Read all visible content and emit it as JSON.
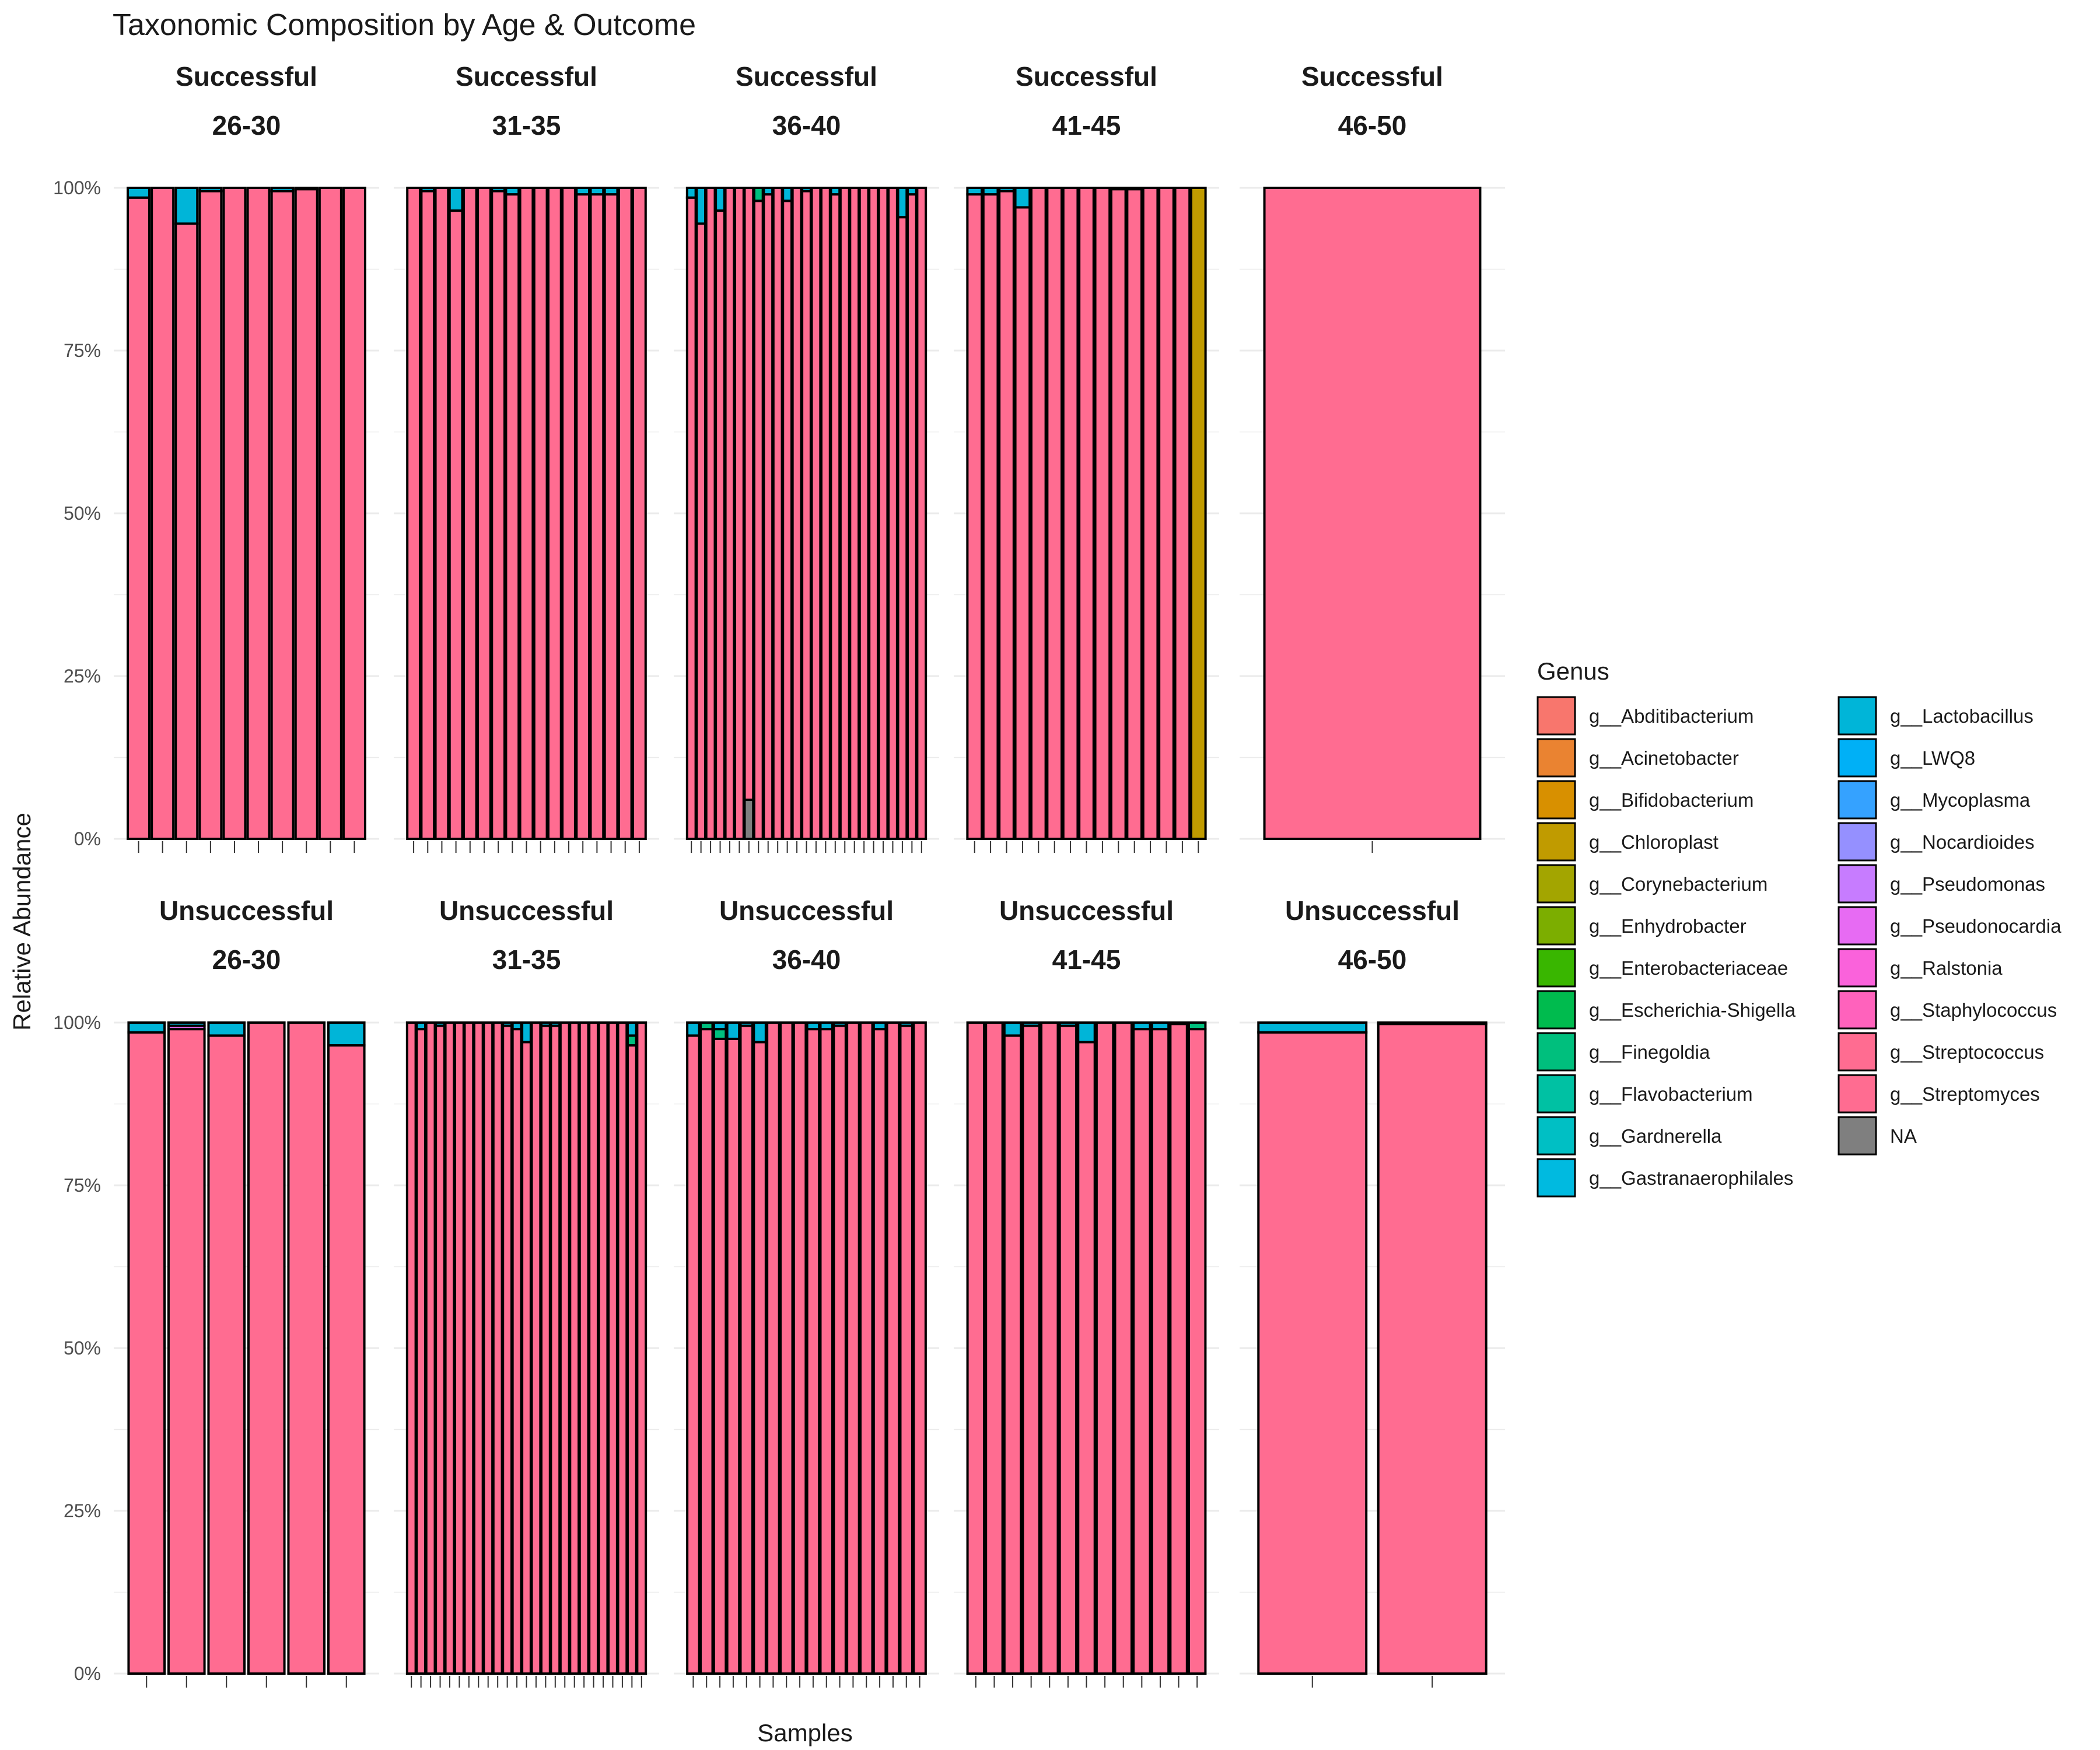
{
  "chart_data": {
    "type": "bar",
    "stacked": true,
    "title": "Taxonomic Composition by Age & Outcome",
    "xlabel": "Samples",
    "ylabel": "Relative Abundance",
    "ylim": [
      0,
      1
    ],
    "y_ticks": [
      "0%",
      "25%",
      "50%",
      "75%",
      "100%"
    ],
    "y_tick_values": [
      0,
      0.25,
      0.5,
      0.75,
      1.0
    ],
    "grid": true,
    "legend_position": "right",
    "legend": {
      "title": "Genus",
      "entries": [
        {
          "name": "g__Abditibacterium",
          "color": "#F8766D"
        },
        {
          "name": "g__Acinetobacter",
          "color": "#EA8331"
        },
        {
          "name": "g__Bifidobacterium",
          "color": "#D89000"
        },
        {
          "name": "g__Chloroplast",
          "color": "#C09B00"
        },
        {
          "name": "g__Corynebacterium",
          "color": "#A3A500"
        },
        {
          "name": "g__Enhydrobacter",
          "color": "#7CAE00"
        },
        {
          "name": "g__Enterobacteriaceae",
          "color": "#39B600"
        },
        {
          "name": "g__Escherichia-Shigella",
          "color": "#00BB4E"
        },
        {
          "name": "g__Finegoldia",
          "color": "#00BF7D"
        },
        {
          "name": "g__Flavobacterium",
          "color": "#00C1A3"
        },
        {
          "name": "g__Gardnerella",
          "color": "#00BFC4"
        },
        {
          "name": "g__Gastranaerophilales",
          "color": "#00BAE0"
        },
        {
          "name": "g__Lactobacillus",
          "color": "#00B5D8"
        },
        {
          "name": "g__LWQ8",
          "color": "#00B0F6"
        },
        {
          "name": "g__Mycoplasma",
          "color": "#35A2FF"
        },
        {
          "name": "g__Nocardioides",
          "color": "#9590FF"
        },
        {
          "name": "g__Pseudomonas",
          "color": "#C77CFF"
        },
        {
          "name": "g__Pseudonocardia",
          "color": "#E76BF3"
        },
        {
          "name": "g__Ralstonia",
          "color": "#FA62DB"
        },
        {
          "name": "g__Staphylococcus",
          "color": "#FF62BC"
        },
        {
          "name": "g__Streptococcus",
          "color": "#FF6C91"
        },
        {
          "name": "g__Streptomyces",
          "color": "#FF6C91"
        },
        {
          "name": "NA",
          "color": "#7F7F7F"
        }
      ]
    },
    "panels": [
      {
        "outcome": "Successful",
        "age": "26-30",
        "samples": [
          {
            "Streptomyces": 0.985,
            "Lactobacillus": 0.015
          },
          {
            "Streptomyces": 1.0
          },
          {
            "Streptomyces": 0.945,
            "Lactobacillus": 0.055
          },
          {
            "Streptomyces": 0.995,
            "Lactobacillus": 0.005
          },
          {
            "Streptomyces": 1.0
          },
          {
            "Streptomyces": 1.0
          },
          {
            "Streptomyces": 0.995,
            "Lactobacillus": 0.005
          },
          {
            "Streptomyces": 0.998,
            "Lactobacillus": 0.002
          },
          {
            "Streptomyces": 1.0
          },
          {
            "Streptomyces": 1.0
          }
        ]
      },
      {
        "outcome": "Successful",
        "age": "31-35",
        "samples": [
          {
            "Streptomyces": 1.0
          },
          {
            "Streptomyces": 0.995,
            "Lactobacillus": 0.005
          },
          {
            "Streptomyces": 1.0
          },
          {
            "Streptomyces": 0.965,
            "Lactobacillus": 0.035
          },
          {
            "Streptomyces": 1.0
          },
          {
            "Streptomyces": 1.0
          },
          {
            "Streptomyces": 0.995,
            "Lactobacillus": 0.005
          },
          {
            "Streptomyces": 0.99,
            "Lactobacillus": 0.01
          },
          {
            "Streptomyces": 1.0
          },
          {
            "Streptomyces": 1.0
          },
          {
            "Streptomyces": 1.0
          },
          {
            "Streptomyces": 1.0
          },
          {
            "Streptomyces": 0.99,
            "Lactobacillus": 0.01
          },
          {
            "Streptomyces": 0.99,
            "Lactobacillus": 0.01
          },
          {
            "Streptomyces": 0.99,
            "Lactobacillus": 0.01
          },
          {
            "Streptomyces": 1.0
          },
          {
            "Streptomyces": 1.0
          }
        ]
      },
      {
        "outcome": "Successful",
        "age": "36-40",
        "samples": [
          {
            "Streptomyces": 0.985,
            "Lactobacillus": 0.015
          },
          {
            "Streptomyces": 0.945,
            "Lactobacillus": 0.055
          },
          {
            "Streptomyces": 1.0
          },
          {
            "Streptomyces": 0.965,
            "Lactobacillus": 0.035
          },
          {
            "Streptomyces": 1.0
          },
          {
            "Streptomyces": 1.0
          },
          {
            "Streptomyces": 0.94,
            "NA": 0.06
          },
          {
            "Streptomyces": 0.98,
            "Finegoldia": 0.02
          },
          {
            "Streptomyces": 0.99,
            "Lactobacillus": 0.01
          },
          {
            "Streptomyces": 1.0
          },
          {
            "Streptomyces": 0.98,
            "Lactobacillus": 0.02
          },
          {
            "Streptomyces": 1.0
          },
          {
            "Streptomyces": 0.995,
            "Lactobacillus": 0.005
          },
          {
            "Streptomyces": 1.0
          },
          {
            "Streptomyces": 1.0
          },
          {
            "Streptomyces": 0.99,
            "Lactobacillus": 0.01
          },
          {
            "Streptomyces": 1.0
          },
          {
            "Streptomyces": 1.0
          },
          {
            "Streptomyces": 1.0
          },
          {
            "Streptomyces": 1.0
          },
          {
            "Streptomyces": 1.0
          },
          {
            "Streptomyces": 1.0
          },
          {
            "Streptomyces": 0.955,
            "Lactobacillus": 0.045
          },
          {
            "Streptomyces": 0.99,
            "Lactobacillus": 0.01
          },
          {
            "Streptomyces": 1.0
          }
        ]
      },
      {
        "outcome": "Successful",
        "age": "41-45",
        "samples": [
          {
            "Streptomyces": 0.99,
            "Lactobacillus": 0.01
          },
          {
            "Streptomyces": 0.99,
            "Lactobacillus": 0.01
          },
          {
            "Streptomyces": 0.995,
            "Lactobacillus": 0.005
          },
          {
            "Streptomyces": 0.97,
            "Lactobacillus": 0.03
          },
          {
            "Streptomyces": 1.0
          },
          {
            "Streptomyces": 1.0
          },
          {
            "Streptomyces": 1.0
          },
          {
            "Streptomyces": 1.0
          },
          {
            "Streptomyces": 1.0
          },
          {
            "Streptomyces": 0.998,
            "Lactobacillus": 0.002
          },
          {
            "Streptomyces": 0.998,
            "Lactobacillus": 0.002
          },
          {
            "Streptomyces": 1.0
          },
          {
            "Streptomyces": 1.0
          },
          {
            "Streptomyces": 1.0
          },
          {
            "Chloroplast": 1.0
          }
        ]
      },
      {
        "outcome": "Successful",
        "age": "46-50",
        "samples": [
          {
            "Streptomyces": 1.0
          }
        ]
      },
      {
        "outcome": "Unsuccessful",
        "age": "26-30",
        "samples": [
          {
            "Streptomyces": 0.985,
            "Lactobacillus": 0.015
          },
          {
            "Streptomyces": 0.99,
            "Pseudonocardia": 0.005,
            "Lactobacillus": 0.005
          },
          {
            "Streptomyces": 0.98,
            "Lactobacillus": 0.02
          },
          {
            "Streptomyces": 1.0
          },
          {
            "Streptomyces": 1.0
          },
          {
            "Streptomyces": 0.965,
            "Lactobacillus": 0.035
          }
        ]
      },
      {
        "outcome": "Unsuccessful",
        "age": "31-35",
        "samples": [
          {
            "Streptomyces": 1.0
          },
          {
            "Streptomyces": 0.99,
            "Lactobacillus": 0.01
          },
          {
            "Streptomyces": 1.0
          },
          {
            "Streptomyces": 0.995,
            "Lactobacillus": 0.005
          },
          {
            "Streptomyces": 1.0
          },
          {
            "Streptomyces": 1.0
          },
          {
            "Streptomyces": 1.0
          },
          {
            "Streptomyces": 1.0
          },
          {
            "Streptomyces": 1.0
          },
          {
            "Streptomyces": 1.0
          },
          {
            "Streptomyces": 0.995,
            "Lactobacillus": 0.005
          },
          {
            "Streptomyces": 0.99,
            "Lactobacillus": 0.01
          },
          {
            "Streptomyces": 0.97,
            "Lactobacillus": 0.03
          },
          {
            "Streptomyces": 1.0
          },
          {
            "Streptomyces": 0.995,
            "Lactobacillus": 0.005
          },
          {
            "Streptomyces": 0.995,
            "Lactobacillus": 0.005
          },
          {
            "Streptomyces": 1.0
          },
          {
            "Streptomyces": 1.0
          },
          {
            "Streptomyces": 1.0
          },
          {
            "Streptomyces": 1.0
          },
          {
            "Streptomyces": 1.0
          },
          {
            "Streptomyces": 1.0
          },
          {
            "Streptomyces": 1.0
          },
          {
            "Streptomyces": 0.965,
            "Finegoldia": 0.015,
            "Lactobacillus": 0.02
          },
          {
            "Streptomyces": 1.0
          }
        ]
      },
      {
        "outcome": "Unsuccessful",
        "age": "36-40",
        "samples": [
          {
            "Streptomyces": 0.98,
            "Lactobacillus": 0.02
          },
          {
            "Streptomyces": 0.99,
            "Finegoldia": 0.01
          },
          {
            "Streptomyces": 0.975,
            "Finegoldia": 0.015,
            "Lactobacillus": 0.01
          },
          {
            "Streptomyces": 0.975,
            "Lactobacillus": 0.025
          },
          {
            "Streptomyces": 0.995,
            "Lactobacillus": 0.005
          },
          {
            "Streptomyces": 0.97,
            "Lactobacillus": 0.03
          },
          {
            "Streptomyces": 1.0
          },
          {
            "Streptomyces": 1.0
          },
          {
            "Streptomyces": 1.0
          },
          {
            "Streptomyces": 0.99,
            "Lactobacillus": 0.01
          },
          {
            "Streptomyces": 0.99,
            "Lactobacillus": 0.01
          },
          {
            "Streptomyces": 0.995,
            "Lactobacillus": 0.005
          },
          {
            "Streptomyces": 1.0
          },
          {
            "Streptomyces": 1.0
          },
          {
            "Streptomyces": 0.99,
            "Lactobacillus": 0.01
          },
          {
            "Streptomyces": 1.0
          },
          {
            "Streptomyces": 0.995,
            "Lactobacillus": 0.005
          },
          {
            "Streptomyces": 1.0
          }
        ]
      },
      {
        "outcome": "Unsuccessful",
        "age": "41-45",
        "samples": [
          {
            "Streptomyces": 1.0
          },
          {
            "Streptomyces": 1.0
          },
          {
            "Streptomyces": 0.98,
            "Lactobacillus": 0.02
          },
          {
            "Streptomyces": 0.995,
            "Lactobacillus": 0.005
          },
          {
            "Streptomyces": 1.0
          },
          {
            "Streptomyces": 0.995,
            "Lactobacillus": 0.005
          },
          {
            "Streptomyces": 0.97,
            "Lactobacillus": 0.03
          },
          {
            "Streptomyces": 1.0
          },
          {
            "Streptomyces": 1.0
          },
          {
            "Streptomyces": 0.99,
            "Lactobacillus": 0.01
          },
          {
            "Streptomyces": 0.99,
            "Lactobacillus": 0.01
          },
          {
            "Streptomyces": 0.998,
            "Lactobacillus": 0.002
          },
          {
            "Streptomyces": 0.99,
            "Finegoldia": 0.01
          }
        ]
      },
      {
        "outcome": "Unsuccessful",
        "age": "46-50",
        "samples": [
          {
            "Streptomyces": 0.985,
            "Lactobacillus": 0.015
          },
          {
            "Streptomyces": 0.998,
            "Lactobacillus": 0.002
          }
        ]
      }
    ]
  }
}
